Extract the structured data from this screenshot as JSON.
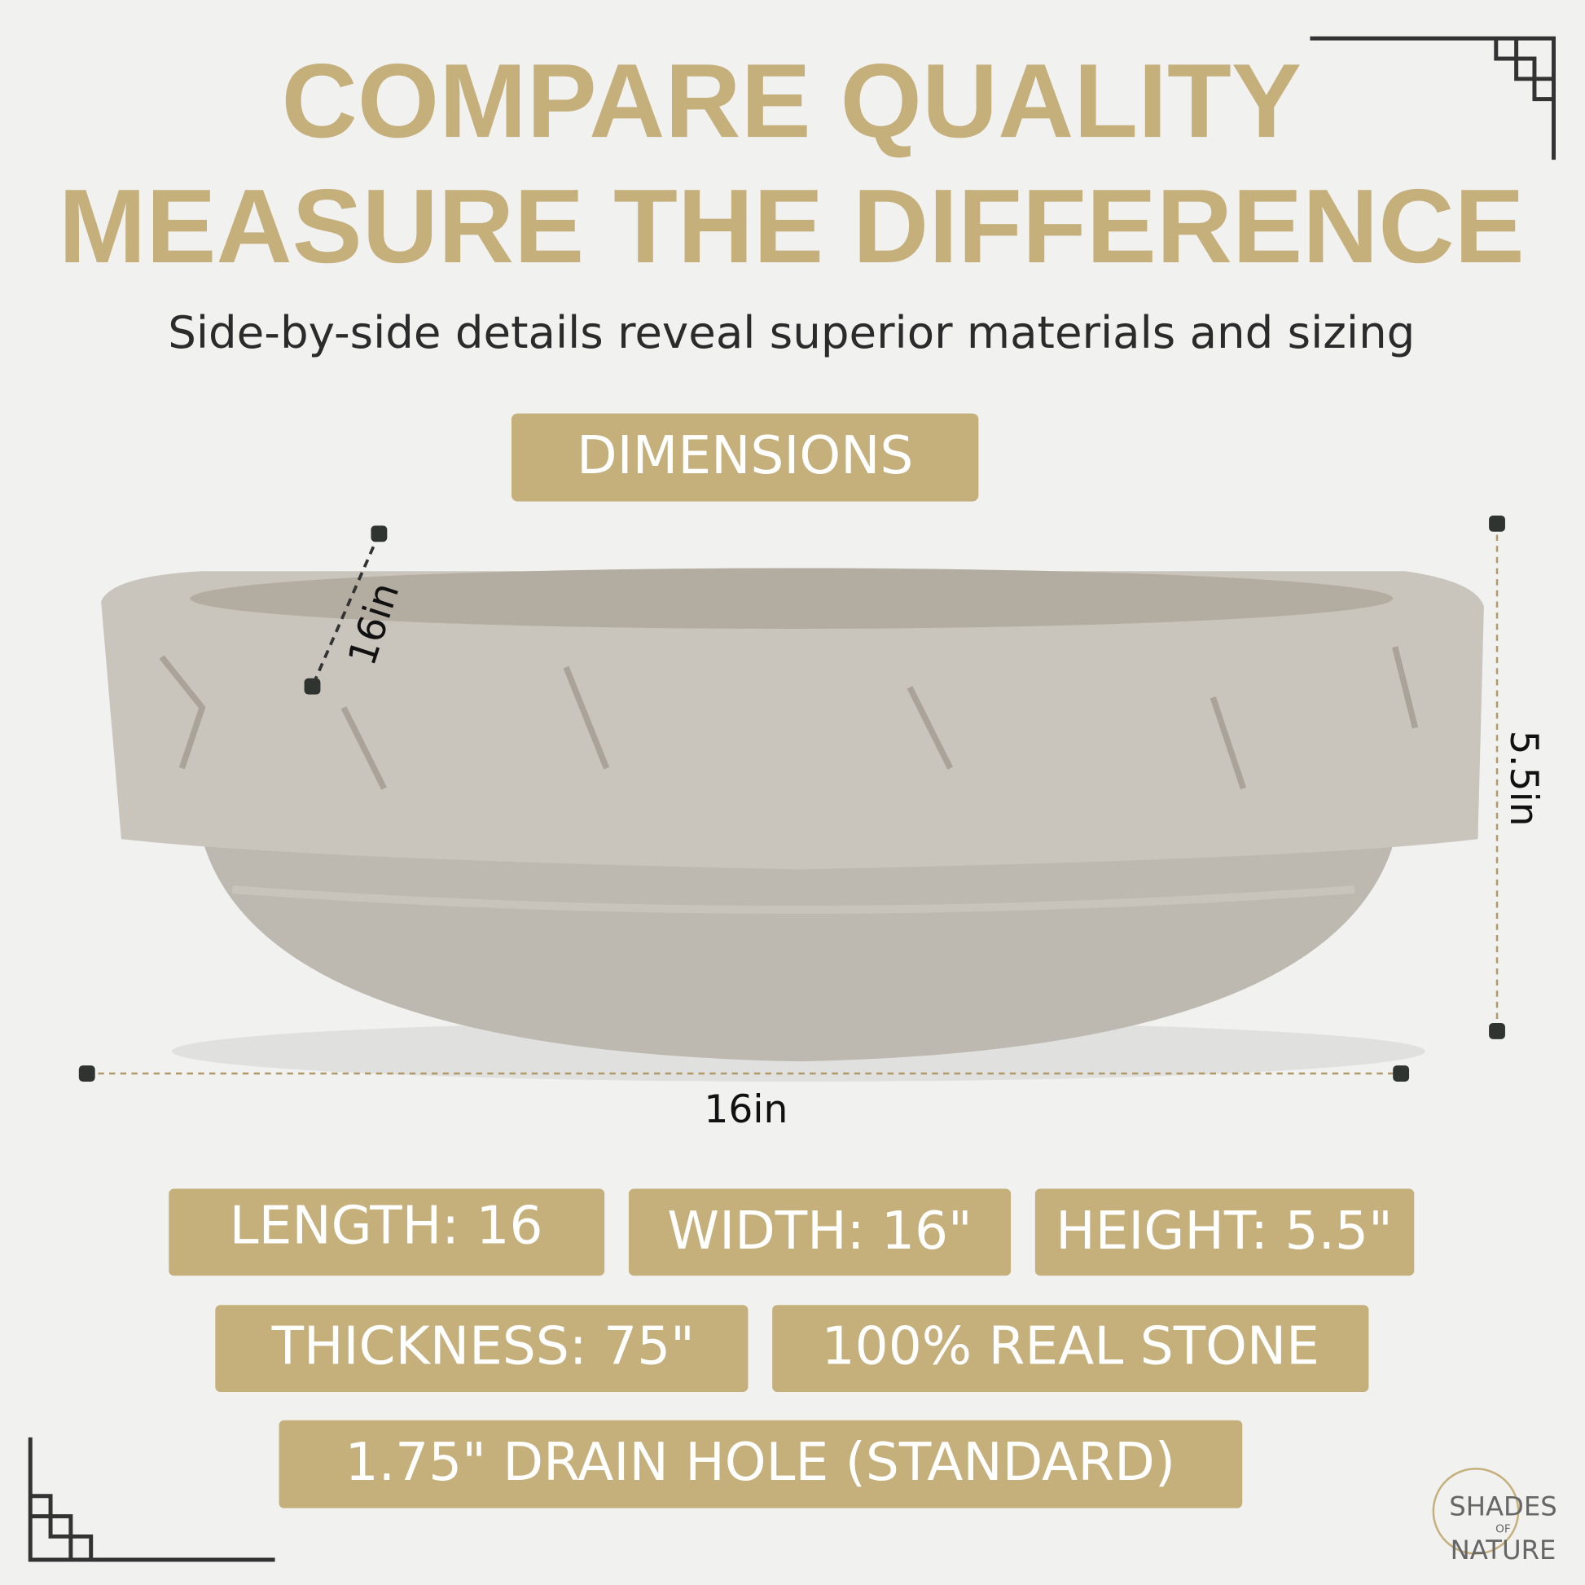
{
  "header": {
    "title_lines": [
      "COMPARE QUALITY",
      "MEASURE THE DIFFERENCE"
    ],
    "subtitle": "Side-by-side details reveal superior materials and sizing"
  },
  "badge": "DIMENSIONS",
  "dimension_labels": {
    "diagonal": "16in",
    "height": "5.5in",
    "length": "16in"
  },
  "specs": [
    "LENGTH: 16",
    "WIDTH: 16\"",
    "HEIGHT: 5.5\"",
    "THICKNESS: 75\"",
    "100% REAL STONE",
    "1.75\" DRAIN HOLE (STANDARD)"
  ],
  "logo": [
    "SHADES",
    "OF",
    "NATURE"
  ]
}
